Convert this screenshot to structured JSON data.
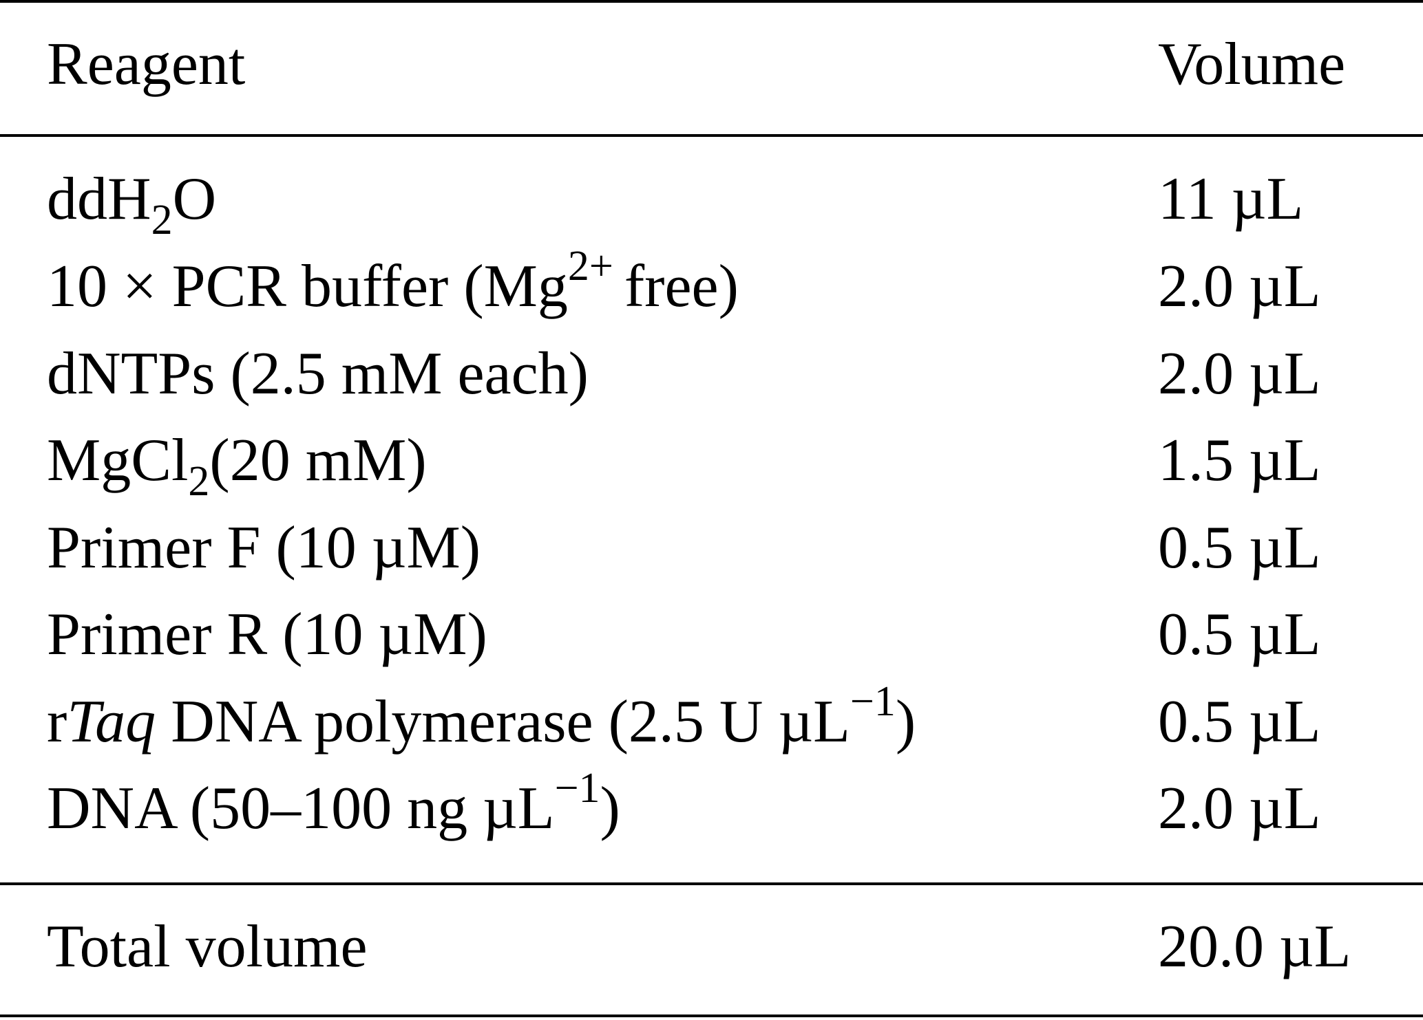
{
  "table": {
    "header": {
      "reagent": "Reagent",
      "volume": "Volume"
    },
    "rows": [
      {
        "reagent_main": "ddH",
        "reagent_sub": "2",
        "reagent_tail": "O",
        "volume": "11 µL"
      },
      {
        "reagent_main": "10 × PCR buffer (Mg",
        "reagent_sup": "2+",
        "reagent_tail": "free)",
        "volume": "2.0 µL"
      },
      {
        "reagent": "dNTPs (2.5 mM each)",
        "volume": "2.0 µL"
      },
      {
        "reagent_main": "MgCl",
        "reagent_sub": "2",
        "reagent_tail": "(20 mM)",
        "volume": "1.5 µL"
      },
      {
        "reagent": "Primer F (10 µM)",
        "volume": "0.5 µL"
      },
      {
        "reagent": "Primer R (10 µM)",
        "volume": "0.5 µL"
      },
      {
        "reagent_pre": "r",
        "reagent_italic": "Taq",
        "reagent_main": " DNA polymerase (2.5 U µL",
        "reagent_sup": "−1",
        "reagent_tail": ")",
        "volume": "0.5 µL"
      },
      {
        "reagent_main": "DNA (50–100 ng µL",
        "reagent_sup": "−1",
        "reagent_tail": ")",
        "volume": "2.0 µL"
      }
    ],
    "total": {
      "reagent": "Total volume",
      "volume": "20.0 µL"
    }
  }
}
